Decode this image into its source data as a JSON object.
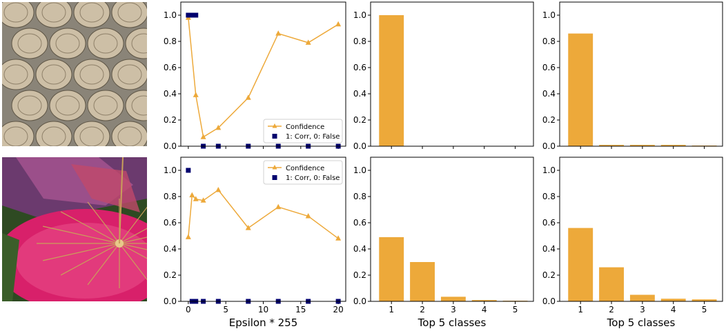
{
  "colors": {
    "confidence": "#eda93a",
    "correct_marker": "#00006e",
    "axis": "#000000"
  },
  "photos": [
    {
      "name": "wine-barrels-photo",
      "subject": "wine barrels stacked on metal racks"
    },
    {
      "name": "parasols-photo",
      "subject": "pink and red paper parasols on grass"
    }
  ],
  "labels": {
    "epsilon_xlabel": "Epsilon * 255",
    "top5_xlabel": "Top 5 classes"
  },
  "chart_data": [
    {
      "type": "line",
      "row": 1,
      "xlim": [
        -1,
        21
      ],
      "ylim": [
        0,
        1.1
      ],
      "x_ticks": [
        0,
        5,
        10,
        15,
        20
      ],
      "x_tick_labels_shown": false,
      "y_ticks": [
        "0.0",
        "0.2",
        "0.4",
        "0.6",
        "0.8",
        "1.0"
      ],
      "legend_position": "lower-right",
      "series": [
        {
          "name": "Confidence",
          "marker": "triangle",
          "x": [
            0,
            1,
            2,
            4,
            8,
            12,
            16,
            20
          ],
          "y": [
            0.98,
            0.39,
            0.07,
            0.14,
            0.37,
            0.86,
            0.79,
            0.93
          ]
        },
        {
          "name": "1: Corr, 0: False",
          "marker": "square",
          "x": [
            0,
            0.25,
            0.5,
            0.75,
            1,
            2,
            4,
            8,
            12,
            16,
            20
          ],
          "y": [
            1,
            1,
            1,
            1,
            1,
            0,
            0,
            0,
            0,
            0,
            0
          ]
        }
      ]
    },
    {
      "type": "bar",
      "row": 1,
      "categories": [
        "1",
        "2",
        "3",
        "4",
        "5"
      ],
      "x_tick_labels_shown": false,
      "values": [
        1.0,
        0.0,
        0.0,
        0.0,
        0.0
      ],
      "ylim": [
        0,
        1.1
      ],
      "y_ticks": [
        "0.0",
        "0.2",
        "0.4",
        "0.6",
        "0.8",
        "1.0"
      ]
    },
    {
      "type": "bar",
      "row": 1,
      "categories": [
        "1",
        "2",
        "3",
        "4",
        "5"
      ],
      "x_tick_labels_shown": false,
      "values": [
        0.86,
        0.01,
        0.01,
        0.01,
        0.005
      ],
      "ylim": [
        0,
        1.1
      ],
      "y_ticks": [
        "0.0",
        "0.2",
        "0.4",
        "0.6",
        "0.8",
        "1.0"
      ]
    },
    {
      "type": "line",
      "row": 2,
      "xlim": [
        -1,
        21
      ],
      "ylim": [
        0,
        1.1
      ],
      "x_ticks": [
        0,
        5,
        10,
        15,
        20
      ],
      "x_tick_labels": [
        "0",
        "5",
        "10",
        "15",
        "20"
      ],
      "x_tick_labels_shown": true,
      "xlabel": "Epsilon * 255",
      "y_ticks": [
        "0.0",
        "0.2",
        "0.4",
        "0.6",
        "0.8",
        "1.0"
      ],
      "legend_position": "upper-right",
      "series": [
        {
          "name": "Confidence",
          "marker": "triangle",
          "x": [
            0,
            0.5,
            1,
            2,
            4,
            8,
            12,
            16,
            20
          ],
          "y": [
            0.49,
            0.81,
            0.78,
            0.77,
            0.85,
            0.56,
            0.72,
            0.65,
            0.48
          ]
        },
        {
          "name": "1: Corr, 0: False",
          "marker": "square",
          "x": [
            0,
            0.5,
            1,
            2,
            4,
            8,
            12,
            16,
            20
          ],
          "y": [
            1,
            0,
            0,
            0,
            0,
            0,
            0,
            0,
            0
          ]
        }
      ]
    },
    {
      "type": "bar",
      "row": 2,
      "categories": [
        "1",
        "2",
        "3",
        "4",
        "5"
      ],
      "x_tick_labels_shown": true,
      "xlabel": "Top 5 classes",
      "values": [
        0.49,
        0.3,
        0.035,
        0.01,
        0.005
      ],
      "ylim": [
        0,
        1.1
      ],
      "y_ticks": [
        "0.0",
        "0.2",
        "0.4",
        "0.6",
        "0.8",
        "1.0"
      ]
    },
    {
      "type": "bar",
      "row": 2,
      "categories": [
        "1",
        "2",
        "3",
        "4",
        "5"
      ],
      "x_tick_labels_shown": true,
      "xlabel": "Top 5 classes",
      "values": [
        0.56,
        0.26,
        0.05,
        0.02,
        0.015
      ],
      "ylim": [
        0,
        1.1
      ],
      "y_ticks": [
        "0.0",
        "0.2",
        "0.4",
        "0.6",
        "0.8",
        "1.0"
      ]
    }
  ]
}
